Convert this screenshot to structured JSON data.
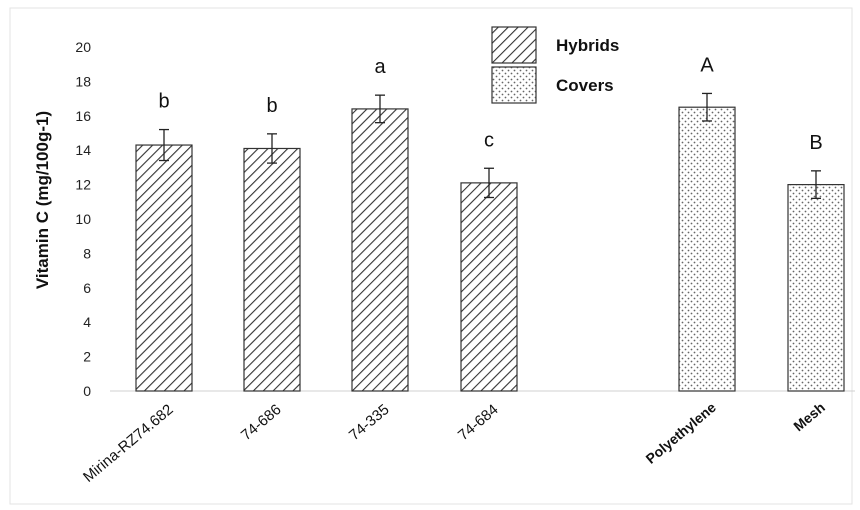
{
  "chart_data": {
    "type": "bar",
    "ylabel": "Vitamin C (mg/100g-1)",
    "xlabel": "",
    "ylim": [
      0,
      20
    ],
    "yticks": [
      0,
      2,
      4,
      6,
      8,
      10,
      12,
      14,
      16,
      18,
      20
    ],
    "grid": false,
    "legend_position": "top-center",
    "series": [
      {
        "name": "Hybrids",
        "pattern": "diagonal-hatch",
        "categories": [
          "Mirina-RZ74.682",
          "74-686",
          "74-335",
          "74-684"
        ],
        "values": [
          14.3,
          14.1,
          16.4,
          12.1
        ],
        "errors": [
          0.9,
          0.85,
          0.8,
          0.85
        ],
        "letters": [
          "b",
          "b",
          "a",
          "c"
        ]
      },
      {
        "name": "Covers",
        "pattern": "dots",
        "categories": [
          "Polyethylene",
          "Mesh"
        ],
        "values": [
          16.5,
          12.0
        ],
        "errors": [
          0.8,
          0.8
        ],
        "letters": [
          "A",
          "B"
        ]
      }
    ]
  }
}
